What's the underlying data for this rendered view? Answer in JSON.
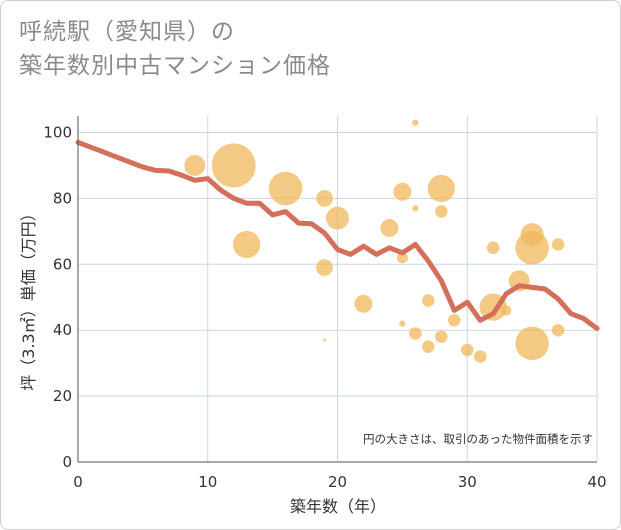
{
  "title_lines": [
    "呼続駅（愛知県）の",
    "築年数別中古マンション価格"
  ],
  "chart_data": {
    "type": "scatter",
    "title": "呼続駅（愛知県）の築年数別中古マンション価格",
    "xlabel": "築年数（年）",
    "ylabel": "坪（3.3㎡）単価（万円）",
    "xlim": [
      0,
      40
    ],
    "ylim": [
      0,
      105
    ],
    "xticks": [
      0,
      10,
      20,
      30,
      40
    ],
    "yticks": [
      0,
      20,
      40,
      60,
      80,
      100
    ],
    "grid": true,
    "note": "円の大きさは、取引のあった物件面積を示す",
    "colors": {
      "bubble": "#f0b75a",
      "line": "#d46f5a",
      "grid": "#c9d7e8",
      "axis": "#555555"
    },
    "bubbles": [
      {
        "x": 9,
        "y": 90,
        "size": 0.45
      },
      {
        "x": 12,
        "y": 90,
        "size": 1.0
      },
      {
        "x": 13,
        "y": 66,
        "size": 0.6
      },
      {
        "x": 16,
        "y": 83,
        "size": 0.75
      },
      {
        "x": 19,
        "y": 80,
        "size": 0.35
      },
      {
        "x": 19,
        "y": 59,
        "size": 0.35
      },
      {
        "x": 19,
        "y": 37,
        "size": 0.02
      },
      {
        "x": 20,
        "y": 74,
        "size": 0.5
      },
      {
        "x": 22,
        "y": 48,
        "size": 0.38
      },
      {
        "x": 24,
        "y": 71,
        "size": 0.38
      },
      {
        "x": 25,
        "y": 82,
        "size": 0.38
      },
      {
        "x": 25,
        "y": 62,
        "size": 0.22
      },
      {
        "x": 25,
        "y": 42,
        "size": 0.1
      },
      {
        "x": 26,
        "y": 103,
        "size": 0.1
      },
      {
        "x": 26,
        "y": 77,
        "size": 0.1
      },
      {
        "x": 26,
        "y": 39,
        "size": 0.25
      },
      {
        "x": 27,
        "y": 49,
        "size": 0.25
      },
      {
        "x": 27,
        "y": 35,
        "size": 0.25
      },
      {
        "x": 28,
        "y": 83,
        "size": 0.6
      },
      {
        "x": 28,
        "y": 76,
        "size": 0.25
      },
      {
        "x": 28,
        "y": 38,
        "size": 0.25
      },
      {
        "x": 29,
        "y": 43,
        "size": 0.25
      },
      {
        "x": 30,
        "y": 34,
        "size": 0.25
      },
      {
        "x": 31,
        "y": 32,
        "size": 0.25
      },
      {
        "x": 32,
        "y": 65,
        "size": 0.25
      },
      {
        "x": 32,
        "y": 47,
        "size": 0.6
      },
      {
        "x": 33,
        "y": 46,
        "size": 0.2
      },
      {
        "x": 34,
        "y": 55,
        "size": 0.45
      },
      {
        "x": 35,
        "y": 69,
        "size": 0.5
      },
      {
        "x": 35,
        "y": 65,
        "size": 0.75
      },
      {
        "x": 35,
        "y": 36,
        "size": 0.75
      },
      {
        "x": 37,
        "y": 66,
        "size": 0.25
      },
      {
        "x": 37,
        "y": 40,
        "size": 0.25
      }
    ],
    "line": {
      "x": [
        0,
        1,
        2,
        3,
        4,
        5,
        6,
        7,
        8,
        9,
        10,
        11,
        12,
        13,
        14,
        15,
        16,
        17,
        18,
        19,
        20,
        21,
        22,
        23,
        24,
        25,
        26,
        27,
        28,
        29,
        30,
        31,
        32,
        33,
        34,
        35,
        36,
        37,
        38,
        39,
        40
      ],
      "y": [
        97,
        95.5,
        94,
        92.5,
        91,
        89.5,
        88.5,
        88.3,
        87,
        85.5,
        86,
        82.5,
        80,
        78.5,
        78.5,
        75,
        76,
        72.5,
        72.3,
        69.5,
        64.5,
        63,
        65.5,
        63,
        65,
        63.5,
        66,
        61,
        55,
        46,
        48.5,
        43,
        45,
        51,
        53.5,
        53,
        52.5,
        49.5,
        45,
        43.5,
        40.5
      ]
    }
  }
}
